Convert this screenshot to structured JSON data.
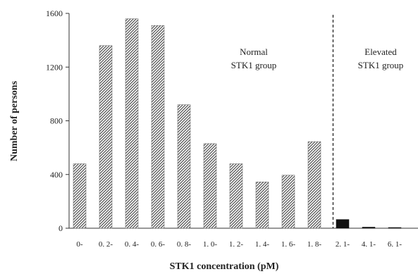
{
  "chart_data": {
    "type": "bar",
    "title": "",
    "xlabel": "STK1 concentration (pM)",
    "ylabel": "Number of persons",
    "ylim": [
      0,
      1600
    ],
    "yticks": [
      0,
      400,
      800,
      1200,
      1600
    ],
    "grid": false,
    "categories": [
      "0-",
      "0. 2-",
      "0. 4-",
      "0. 6-",
      "0. 8-",
      "1. 0-",
      "1. 2-",
      "1. 4-",
      "1. 6-",
      "1. 8-",
      "2. 1-",
      "4. 1-",
      "6. 1-"
    ],
    "values": [
      480,
      1360,
      1560,
      1510,
      920,
      630,
      480,
      345,
      395,
      645,
      65,
      8,
      3
    ],
    "group_of_category": [
      "normal",
      "normal",
      "normal",
      "normal",
      "normal",
      "normal",
      "normal",
      "normal",
      "normal",
      "normal",
      "elevated",
      "elevated",
      "elevated"
    ],
    "groups": {
      "normal": {
        "line1": "Normal",
        "line2": "STK1 group",
        "bar_style": "hatched"
      },
      "elevated": {
        "line1": "Elevated",
        "line2": "STK1 group",
        "bar_style": "solid"
      }
    },
    "divider": {
      "style": "dashed",
      "after_category": "1. 8-"
    },
    "colors": {
      "bar_hatched": "#9a9a9a",
      "bar_solid": "#111111",
      "axis": "#333333"
    }
  }
}
